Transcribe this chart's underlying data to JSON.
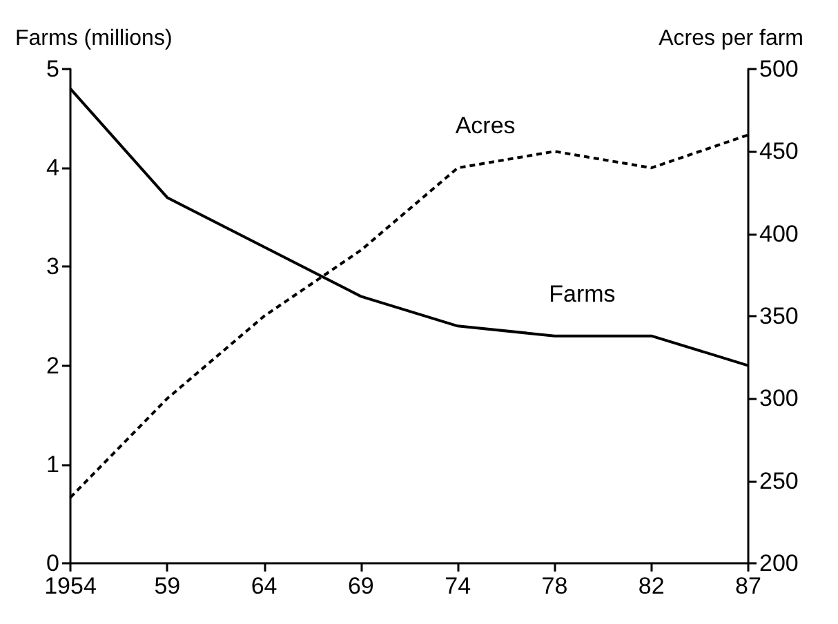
{
  "chart_data": {
    "type": "line",
    "ylabel": "Farms (millions)",
    "y2label": "Acres per farm",
    "categories": [
      "1954",
      "59",
      "64",
      "69",
      "74",
      "78",
      "82",
      "87"
    ],
    "series": [
      {
        "name": "Farms",
        "color": "#000000",
        "line_style": "solid",
        "values": [
          4.8,
          3.7,
          3.2,
          2.7,
          2.4,
          2.3,
          2.3,
          2.0
        ]
      },
      {
        "name": "Acres",
        "color": "#000000",
        "line_style": "dashed",
        "axis": "y2",
        "values": [
          240,
          300,
          350,
          390,
          440,
          450,
          440,
          460
        ]
      }
    ],
    "ylim": [
      0,
      5
    ],
    "yticks": [
      0,
      1,
      2,
      3,
      4,
      5
    ],
    "y2lim": [
      200,
      500
    ],
    "y2ticks": [
      200,
      250,
      300,
      350,
      400,
      450,
      500
    ],
    "grid": false,
    "legend": false,
    "marker": "none"
  }
}
